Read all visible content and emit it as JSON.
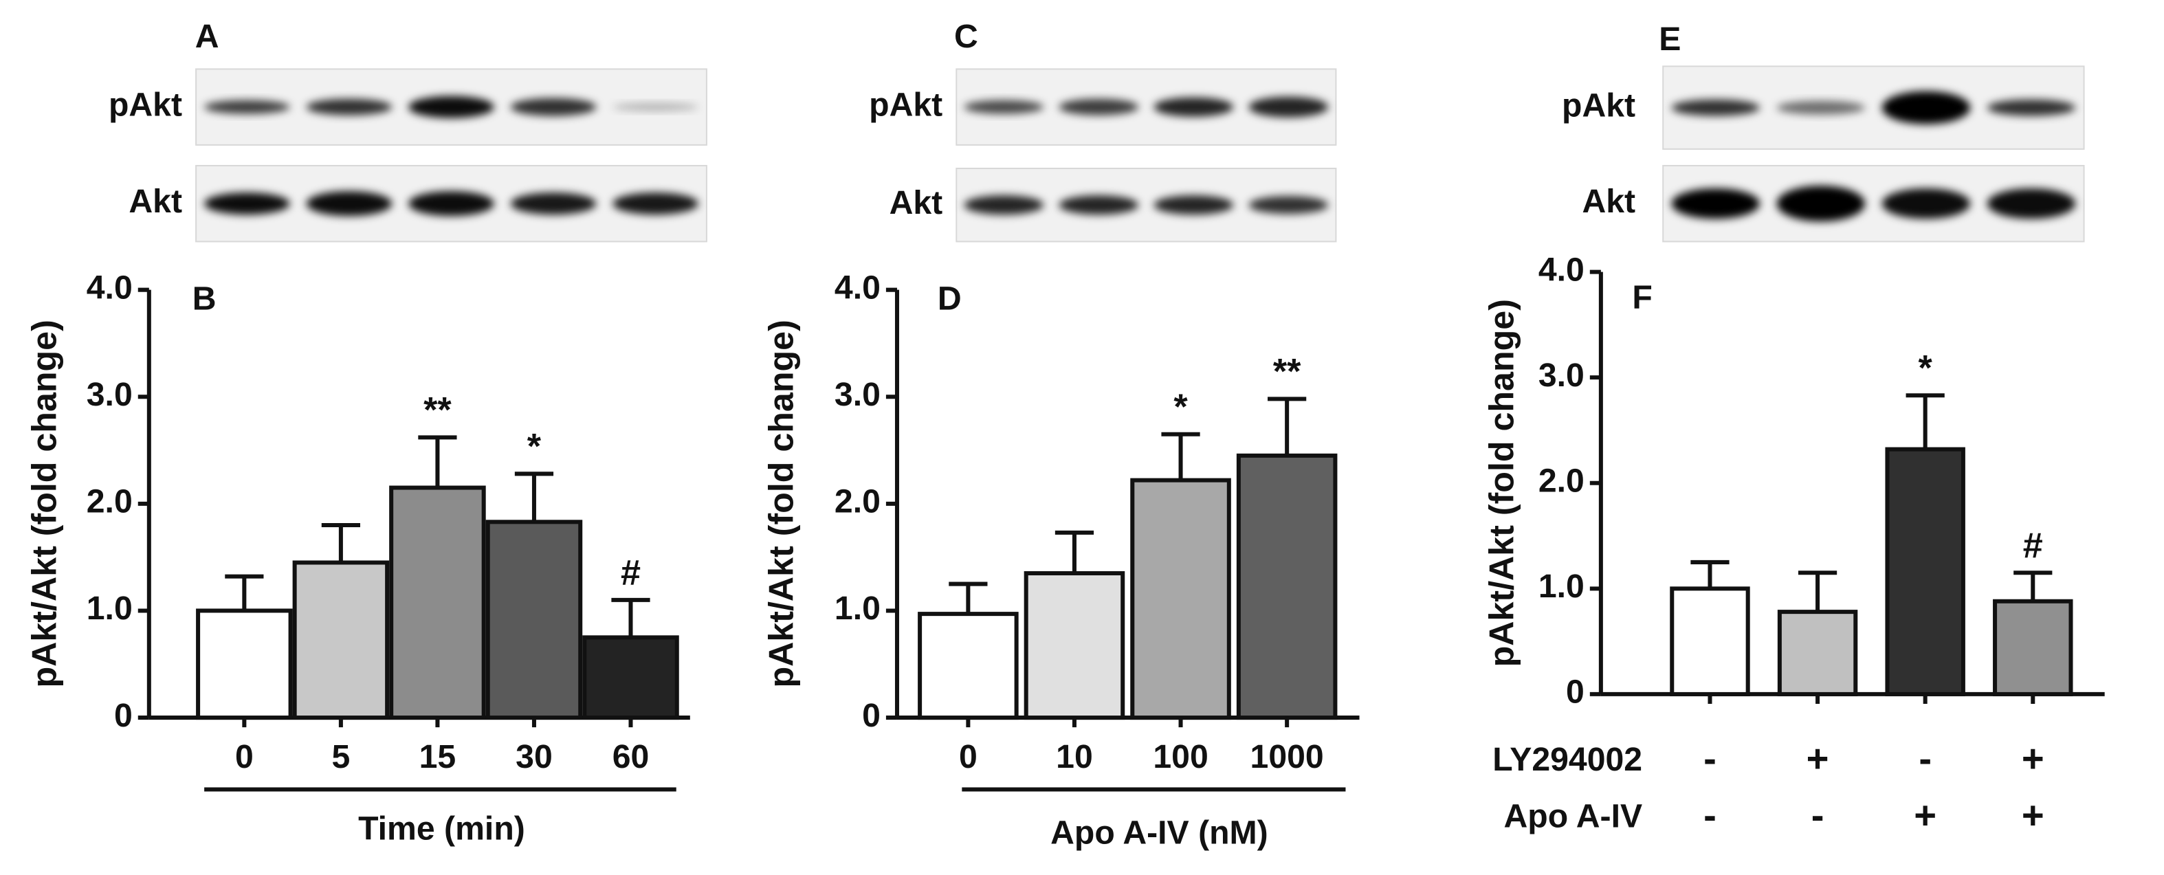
{
  "blots": [
    {
      "panel": "A",
      "rows": [
        "pAkt",
        "Akt"
      ]
    },
    {
      "panel": "C",
      "rows": [
        "pAkt",
        "Akt"
      ]
    },
    {
      "panel": "E",
      "rows": [
        "pAkt",
        "Akt"
      ]
    }
  ],
  "chart_data": [
    {
      "type": "bar",
      "panel": "B",
      "ylabel": "pAkt/Akt (fold change)",
      "xlabel": "Time (min)",
      "categories": [
        "0",
        "5",
        "15",
        "30",
        "60"
      ],
      "values": [
        1.0,
        1.45,
        2.15,
        1.83,
        0.75
      ],
      "errors": [
        0.32,
        0.35,
        0.47,
        0.45,
        0.35
      ],
      "colors": [
        "#ffffff",
        "#c8c8c8",
        "#8c8c8c",
        "#5a5a5a",
        "#232323"
      ],
      "significance": [
        null,
        null,
        "**",
        "*",
        "#"
      ],
      "ylim": [
        0,
        4
      ],
      "yticks": [
        0,
        {
          "value": 1,
          "label": "1.0"
        },
        {
          "value": 2,
          "label": "2.0"
        },
        {
          "value": 3,
          "label": "3.0"
        },
        {
          "value": 4,
          "label": "4.0"
        }
      ]
    },
    {
      "type": "bar",
      "panel": "D",
      "ylabel": "pAkt/Akt (fold change)",
      "xlabel": "Apo A-IV  (nM)",
      "categories": [
        "0",
        "10",
        "100",
        "1000"
      ],
      "values": [
        0.97,
        1.35,
        2.22,
        2.45
      ],
      "errors": [
        0.28,
        0.38,
        0.43,
        0.53
      ],
      "colors": [
        "#ffffff",
        "#e0e0e0",
        "#a8a8a8",
        "#606060"
      ],
      "significance": [
        null,
        null,
        "*",
        "**"
      ],
      "ylim": [
        0,
        4
      ],
      "yticks": [
        0,
        {
          "value": 1,
          "label": "1.0"
        },
        {
          "value": 2,
          "label": "2.0"
        },
        {
          "value": 3,
          "label": "3.0"
        },
        {
          "value": 4,
          "label": "4.0"
        }
      ]
    },
    {
      "type": "bar",
      "panel": "F",
      "ylabel": "pAkt/Akt (fold change)",
      "conditions": [
        {
          "name": "LY294002",
          "values": [
            "-",
            "+",
            "-",
            "+"
          ]
        },
        {
          "name": "Apo A-IV",
          "values": [
            "-",
            "-",
            "+",
            "+"
          ]
        }
      ],
      "values": [
        1.0,
        0.78,
        2.32,
        0.88
      ],
      "errors": [
        0.25,
        0.37,
        0.51,
        0.27
      ],
      "colors": [
        "#ffffff",
        "#c0c0c0",
        "#303030",
        "#909090"
      ],
      "significance": [
        null,
        null,
        "*",
        "#"
      ],
      "ylim": [
        0,
        4
      ],
      "yticks": [
        0,
        {
          "value": 1,
          "label": "1.0"
        },
        {
          "value": 2,
          "label": "2.0"
        },
        {
          "value": 3,
          "label": "3.0"
        },
        {
          "value": 4,
          "label": "4.0"
        }
      ]
    }
  ]
}
